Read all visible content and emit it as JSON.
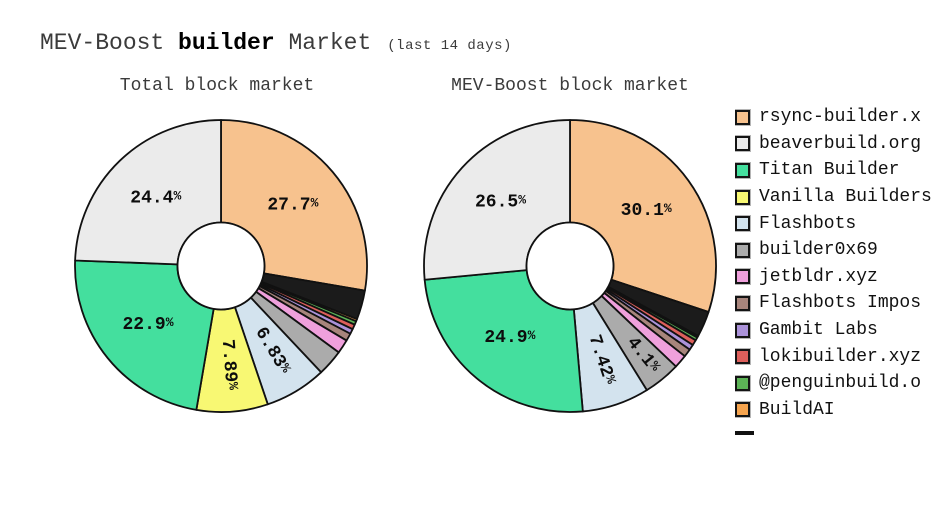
{
  "title": {
    "prefix": "MEV-Boost ",
    "bold": "builder",
    "suffix": " Market",
    "note": "(last 14 days)"
  },
  "legend": {
    "position": "right",
    "items": [
      {
        "label": "rsync-builder.x",
        "color": "#f7c28e"
      },
      {
        "label": "beaverbuild.org",
        "color": "#ebebeb"
      },
      {
        "label": "Titan Builder",
        "color": "#44df9e"
      },
      {
        "label": "Vanilla Builders",
        "color": "#f8f873"
      },
      {
        "label": "Flashbots",
        "color": "#d3e3ee"
      },
      {
        "label": "builder0x69",
        "color": "#ababab"
      },
      {
        "label": "jetbldr.xyz",
        "color": "#efa0dc"
      },
      {
        "label": "Flashbots Impos",
        "color": "#a8857c"
      },
      {
        "label": "Gambit Labs",
        "color": "#ab92d9"
      },
      {
        "label": "lokibuilder.xyz",
        "color": "#dd5f5b"
      },
      {
        "label": "@penguinbuild.o",
        "color": "#5cb356"
      },
      {
        "label": "BuildAI",
        "color": "#f6a44e"
      },
      {
        "label": "",
        "color": "#141414",
        "partial": true
      }
    ]
  },
  "chart_data": [
    {
      "type": "pie",
      "donut": true,
      "title": "Total block market",
      "units": "%",
      "direction": "clockwise",
      "start_angle_deg": 0,
      "slices": [
        {
          "name": "rsync-builder.x",
          "value": 27.7,
          "label": "27.7%",
          "label_style": "horizontal",
          "color": "#f7c28e"
        },
        {
          "name": "unlabeled",
          "value": 3.23,
          "color": "#1b1b1b"
        },
        {
          "name": "BuildAI",
          "value": 0.25,
          "color": "#f6a44e"
        },
        {
          "name": "@penguinbuild.o",
          "value": 0.4,
          "color": "#5cb356"
        },
        {
          "name": "lokibuilder.xyz",
          "value": 0.55,
          "color": "#dd5f5b"
        },
        {
          "name": "Gambit Labs",
          "value": 0.55,
          "color": "#ab92d9"
        },
        {
          "name": "Flashbots Impos",
          "value": 0.85,
          "color": "#a8857c"
        },
        {
          "name": "jetbldr.xyz",
          "value": 1.55,
          "color": "#efa0dc"
        },
        {
          "name": "builder0x69",
          "value": 2.9,
          "color": "#ababab"
        },
        {
          "name": "Flashbots",
          "value": 6.83,
          "label": "6.83%",
          "label_style": "radial",
          "color": "#d3e3ee"
        },
        {
          "name": "Vanilla Builders",
          "value": 7.89,
          "label": "7.89%",
          "label_style": "radial",
          "color": "#f8f873"
        },
        {
          "name": "Titan Builder",
          "value": 22.9,
          "label": "22.9%",
          "label_style": "horizontal",
          "color": "#44df9e"
        },
        {
          "name": "beaverbuild.org",
          "value": 24.4,
          "label": "24.4%",
          "label_style": "horizontal",
          "color": "#ebebeb"
        }
      ]
    },
    {
      "type": "pie",
      "donut": true,
      "title": "MEV-Boost block market",
      "units": "%",
      "direction": "clockwise",
      "start_angle_deg": 0,
      "slices": [
        {
          "name": "rsync-builder.x",
          "value": 30.1,
          "label": "30.1%",
          "label_style": "horizontal",
          "color": "#f7c28e"
        },
        {
          "name": "unlabeled",
          "value": 2.85,
          "color": "#1b1b1b"
        },
        {
          "name": "BuildAI",
          "value": 0.2,
          "color": "#f6a44e"
        },
        {
          "name": "@penguinbuild.o",
          "value": 0.35,
          "color": "#5cb356"
        },
        {
          "name": "lokibuilder.xyz",
          "value": 0.6,
          "color": "#dd5f5b"
        },
        {
          "name": "Gambit Labs",
          "value": 0.6,
          "color": "#ab92d9"
        },
        {
          "name": "Flashbots Impos",
          "value": 0.9,
          "color": "#a8857c"
        },
        {
          "name": "jetbldr.xyz",
          "value": 1.48,
          "color": "#efa0dc"
        },
        {
          "name": "builder0x69",
          "value": 4.1,
          "label": "4.1%",
          "label_style": "radial",
          "color": "#ababab"
        },
        {
          "name": "Flashbots",
          "value": 7.42,
          "label": "7.42%",
          "label_style": "radial",
          "color": "#d3e3ee"
        },
        {
          "name": "Titan Builder",
          "value": 24.9,
          "label": "24.9%",
          "label_style": "horizontal",
          "color": "#44df9e"
        },
        {
          "name": "beaverbuild.org",
          "value": 26.5,
          "label": "26.5%",
          "label_style": "horizontal",
          "color": "#ebebeb"
        }
      ]
    }
  ]
}
